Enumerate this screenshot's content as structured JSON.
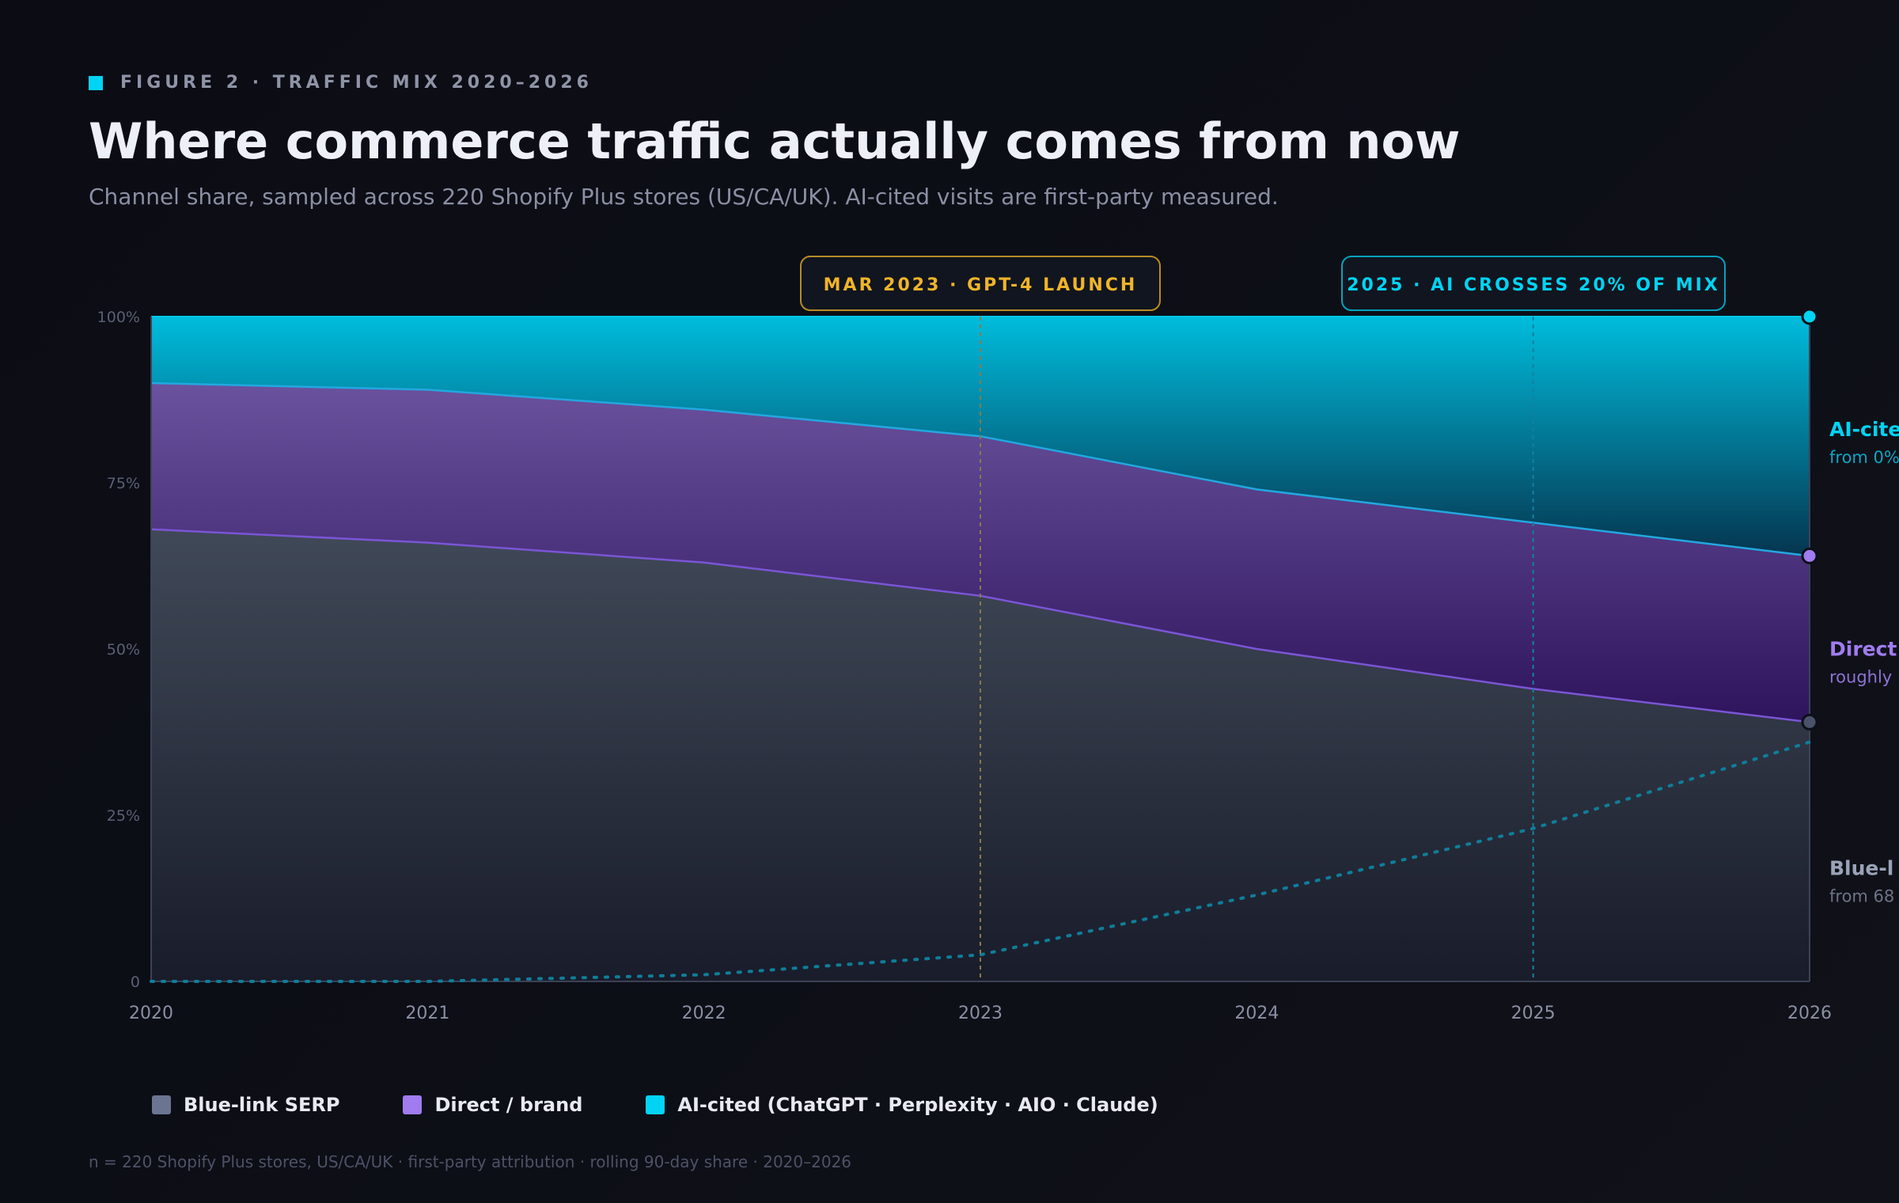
{
  "header": {
    "figure_label": "FIGURE 2 · TRAFFIC MIX 2020–2026",
    "title": "Where commerce traffic actually comes from now",
    "subtitle": "Channel share, sampled across 220 Shopify Plus stores (US/CA/UK). AI-cited visits are first-party measured."
  },
  "colors": {
    "accent": "#00d4f5",
    "blue_link": "#6b7592",
    "direct": "#a07cf0",
    "ai_cited": "#00d4f5",
    "annotation_gold": "#f0b429"
  },
  "chart_data": {
    "type": "area",
    "stacked": true,
    "x": [
      2020,
      2021,
      2022,
      2023,
      2024,
      2025,
      2026
    ],
    "xlim": [
      2020,
      2026
    ],
    "ylim": [
      0,
      100
    ],
    "y_ticks": [
      {
        "value": 0,
        "label": "0"
      },
      {
        "value": 25,
        "label": "25%"
      },
      {
        "value": 50,
        "label": "50%"
      },
      {
        "value": 75,
        "label": "75%"
      },
      {
        "value": 100,
        "label": "100%"
      }
    ],
    "x_tick_labels": [
      "2020",
      "2021",
      "2022",
      "2023",
      "2024",
      "2025",
      "2026"
    ],
    "series": [
      {
        "name": "Blue-link SERP",
        "values": [
          68,
          66,
          63,
          58,
          50,
          44,
          39
        ]
      },
      {
        "name": "Direct / brand",
        "values": [
          22,
          23,
          23,
          24,
          24,
          25,
          25
        ]
      },
      {
        "name": "AI-cited (ChatGPT · Perplexity · AIO · Claude)",
        "values": [
          10,
          11,
          14,
          18,
          26,
          31,
          36
        ]
      }
    ],
    "dotted_trend": {
      "x": [
        2020,
        2021,
        2022,
        2023,
        2024,
        2025,
        2026
      ],
      "values": [
        0,
        0,
        1,
        4,
        13,
        23,
        36
      ]
    },
    "annotations": [
      {
        "x": 2023,
        "label": "MAR 2023 · GPT-4 LAUNCH",
        "color": "#f0b429"
      },
      {
        "x": 2025,
        "label": "2025 · AI CROSSES 20% OF MIX",
        "color": "#00d4f5"
      }
    ],
    "end_labels": [
      {
        "title": "AI-cite",
        "sub": "from 0%",
        "value": 82,
        "color": "#00d4f5",
        "sub_color": "#0ea5c4"
      },
      {
        "title": "Direct",
        "sub": "roughly",
        "value": 49,
        "color": "#a07cf0",
        "sub_color": "#8e72d6"
      },
      {
        "title": "Blue-l",
        "sub": "from 68",
        "value": 16,
        "color": "#9aa3b8",
        "sub_color": "#6b7386"
      }
    ]
  },
  "legend": [
    {
      "label": "Blue-link SERP",
      "color": "#6b7592"
    },
    {
      "label": "Direct / brand",
      "color": "#a07cf0"
    },
    {
      "label": "AI-cited (ChatGPT · Perplexity · AIO · Claude)",
      "color": "#00d4f5"
    }
  ],
  "footnote": "n = 220 Shopify Plus stores, US/CA/UK · first-party attribution · rolling 90-day share · 2020–2026"
}
